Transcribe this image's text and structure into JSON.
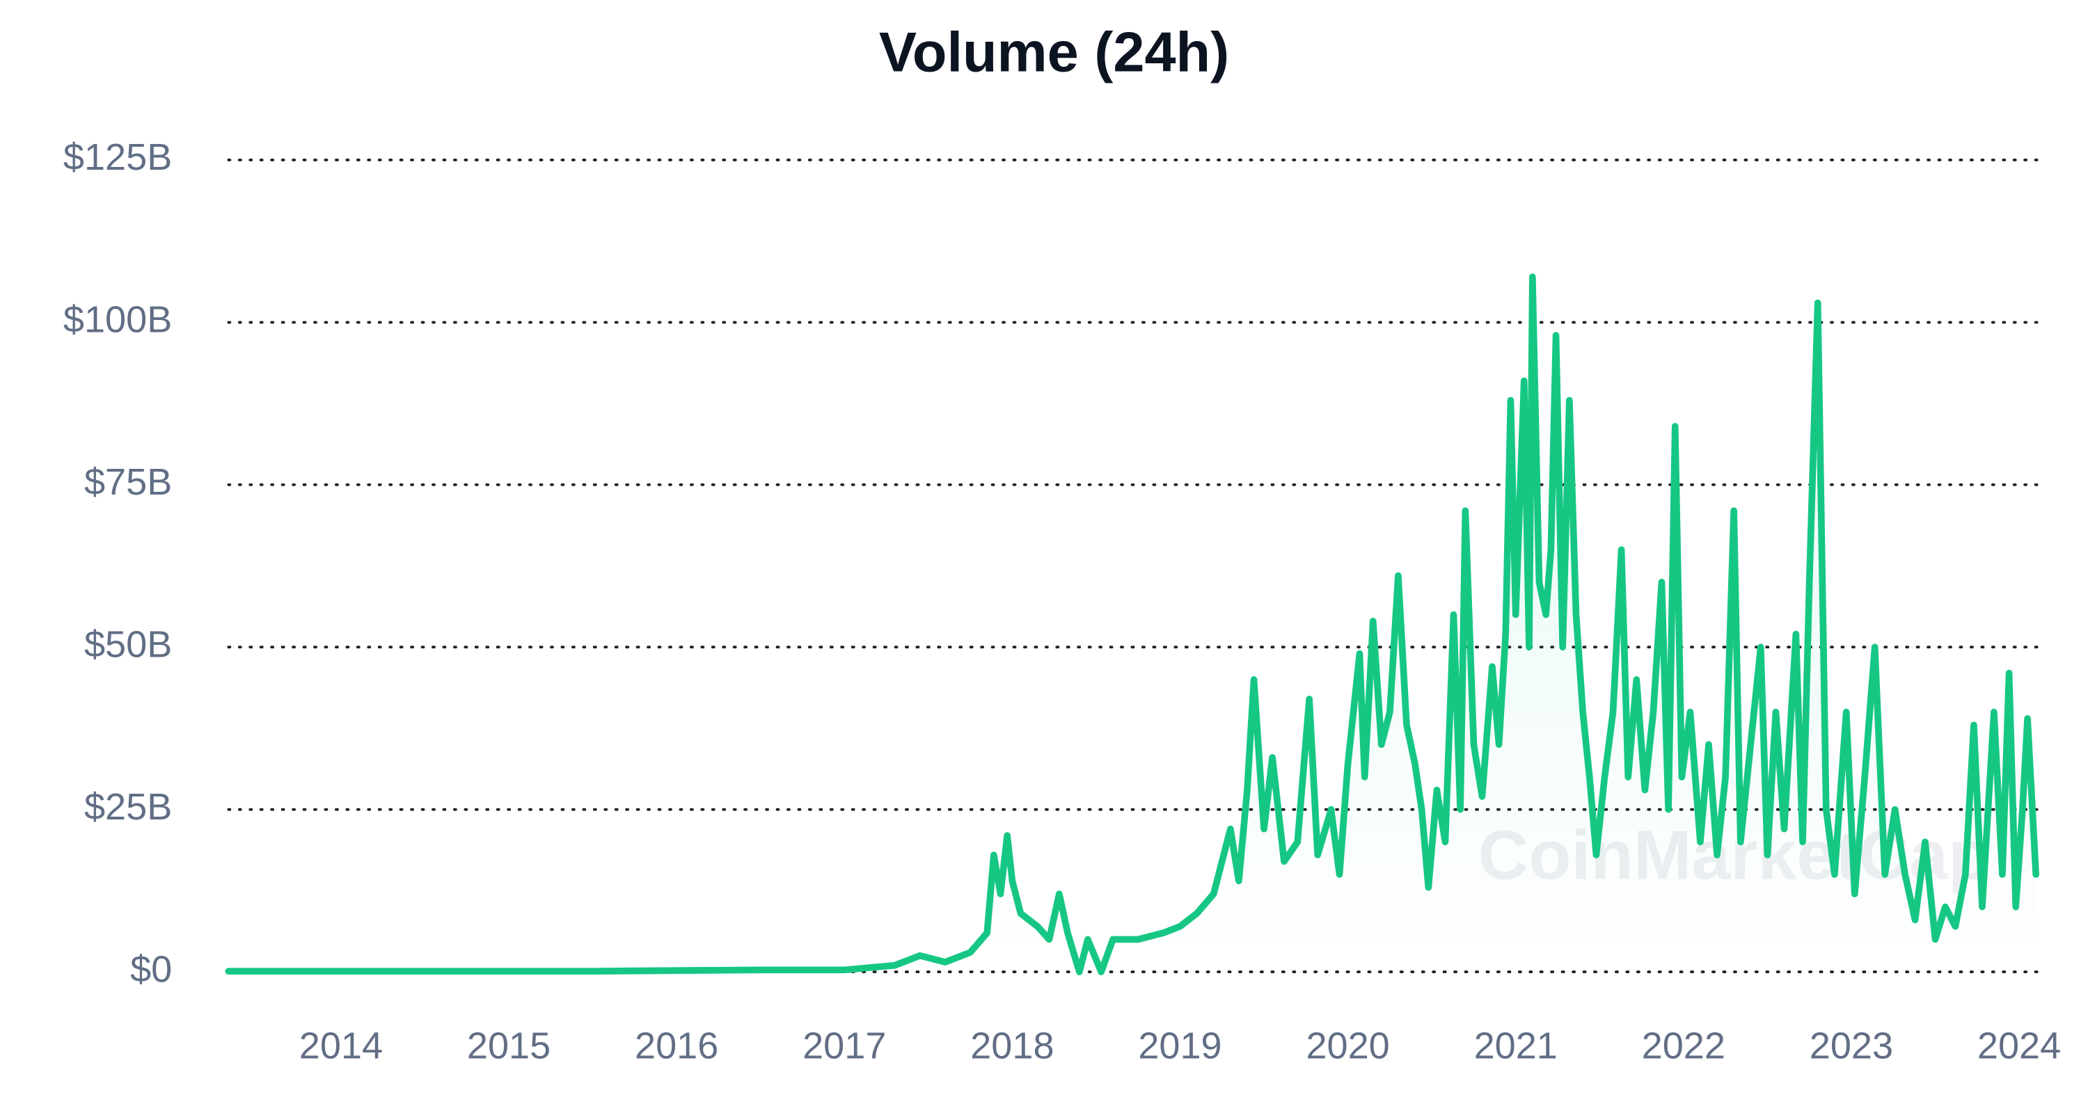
{
  "chart_data": {
    "type": "line",
    "title": "Volume (24h)",
    "watermark": "CoinMarketCap",
    "color": "#16c784",
    "grid": true,
    "xlim": [
      2013.33,
      2024.13
    ],
    "xticks": [
      2014,
      2015,
      2016,
      2017,
      2018,
      2019,
      2020,
      2021,
      2022,
      2023,
      2024
    ],
    "ylim": [
      0,
      125
    ],
    "yticks": [
      {
        "value": 0,
        "label": "$0"
      },
      {
        "value": 25,
        "label": "$25B"
      },
      {
        "value": 50,
        "label": "$50B"
      },
      {
        "value": 75,
        "label": "$75B"
      },
      {
        "value": 100,
        "label": "$100B"
      },
      {
        "value": 125,
        "label": "$125B"
      }
    ],
    "x": [
      2013.33,
      2014.5,
      2015.5,
      2016.5,
      2017.0,
      2017.3,
      2017.45,
      2017.6,
      2017.75,
      2017.85,
      2017.89,
      2017.93,
      2017.97,
      2018.0,
      2018.05,
      2018.15,
      2018.22,
      2018.28,
      2018.33,
      2018.4,
      2018.45,
      2018.53,
      2018.6,
      2018.75,
      2018.9,
      2019.0,
      2019.1,
      2019.2,
      2019.3,
      2019.35,
      2019.4,
      2019.44,
      2019.5,
      2019.55,
      2019.62,
      2019.7,
      2019.77,
      2019.82,
      2019.9,
      2019.95,
      2020.0,
      2020.07,
      2020.1,
      2020.15,
      2020.2,
      2020.25,
      2020.3,
      2020.35,
      2020.4,
      2020.44,
      2020.48,
      2020.53,
      2020.58,
      2020.63,
      2020.67,
      2020.7,
      2020.75,
      2020.8,
      2020.86,
      2020.9,
      2020.94,
      2020.97,
      2021.0,
      2021.05,
      2021.08,
      2021.1,
      2021.14,
      2021.18,
      2021.21,
      2021.24,
      2021.28,
      2021.32,
      2021.36,
      2021.4,
      2021.44,
      2021.48,
      2021.53,
      2021.58,
      2021.63,
      2021.67,
      2021.72,
      2021.77,
      2021.82,
      2021.87,
      2021.91,
      2021.95,
      2021.99,
      2022.04,
      2022.1,
      2022.15,
      2022.2,
      2022.25,
      2022.3,
      2022.34,
      2022.4,
      2022.46,
      2022.5,
      2022.55,
      2022.6,
      2022.67,
      2022.71,
      2022.75,
      2022.8,
      2022.85,
      2022.9,
      2022.97,
      2023.02,
      2023.08,
      2023.14,
      2023.2,
      2023.26,
      2023.32,
      2023.38,
      2023.44,
      2023.5,
      2023.56,
      2023.62,
      2023.68,
      2023.73,
      2023.78,
      2023.85,
      2023.9,
      2023.94,
      2023.98,
      2024.02,
      2024.05,
      2024.1
    ],
    "values": [
      0.1,
      0.1,
      0.1,
      0.3,
      0.3,
      1,
      2.5,
      1.5,
      3,
      6,
      18,
      12,
      21,
      14,
      9,
      7,
      5,
      12,
      6,
      0,
      5,
      0,
      5,
      5,
      6,
      7,
      9,
      12,
      22,
      14,
      28,
      45,
      22,
      33,
      17,
      20,
      42,
      18,
      25,
      15,
      32,
      49,
      30,
      54,
      35,
      40,
      61,
      38,
      32,
      25,
      13,
      28,
      20,
      55,
      25,
      71,
      35,
      27,
      47,
      35,
      52,
      88,
      55,
      91,
      50,
      107,
      60,
      55,
      65,
      98,
      50,
      88,
      55,
      40,
      30,
      18,
      30,
      40,
      65,
      30,
      45,
      28,
      40,
      60,
      25,
      84,
      30,
      40,
      20,
      35,
      18,
      30,
      71,
      20,
      35,
      50,
      18,
      40,
      22,
      52,
      20,
      60,
      103,
      25,
      15,
      40,
      12,
      30,
      50,
      15,
      25,
      15,
      8,
      20,
      5,
      10,
      7,
      15,
      38,
      10,
      40,
      15,
      46,
      10,
      25,
      39,
      15
    ]
  }
}
